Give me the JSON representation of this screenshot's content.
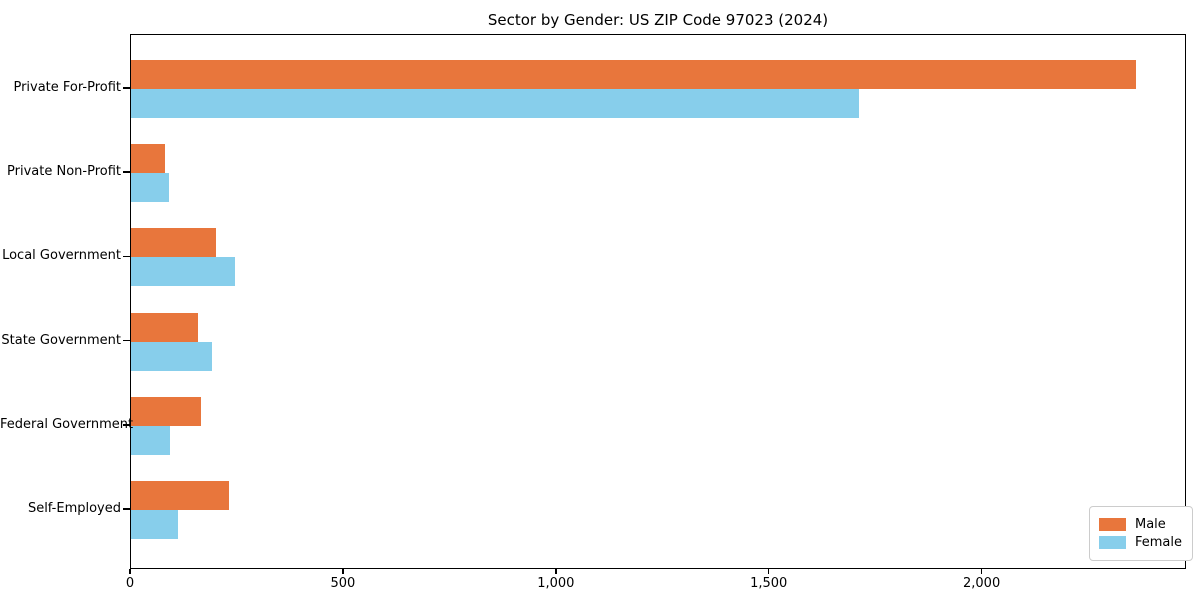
{
  "chart_data": {
    "type": "bar",
    "orientation": "horizontal",
    "title": "Sector by Gender: US ZIP Code 97023 (2024)",
    "categories": [
      "Private For-Profit",
      "Private Non-Profit",
      "Local Government",
      "State Government",
      "Federal Government",
      "Self-Employed"
    ],
    "series": [
      {
        "name": "Male",
        "color": "#e8763c",
        "values": [
          2360,
          80,
          200,
          158,
          165,
          230
        ]
      },
      {
        "name": "Female",
        "color": "#87ceeb",
        "values": [
          1710,
          90,
          245,
          190,
          91,
          111
        ]
      }
    ],
    "xlabel": "",
    "ylabel": "",
    "xlim": [
      0,
      2480
    ],
    "xticks": [
      0,
      500,
      1000,
      1500,
      2000
    ],
    "xtick_labels": [
      "0",
      "500",
      "1,000",
      "1,500",
      "2,000"
    ],
    "grid": false,
    "legend": {
      "position": "lower-right",
      "entries": [
        "Male",
        "Female"
      ]
    },
    "colors": {
      "male": "#e8763c",
      "female": "#87ceeb",
      "spine": "#000000",
      "text": "#000000",
      "background": "#ffffff",
      "legend_border": "#cccccc"
    }
  }
}
